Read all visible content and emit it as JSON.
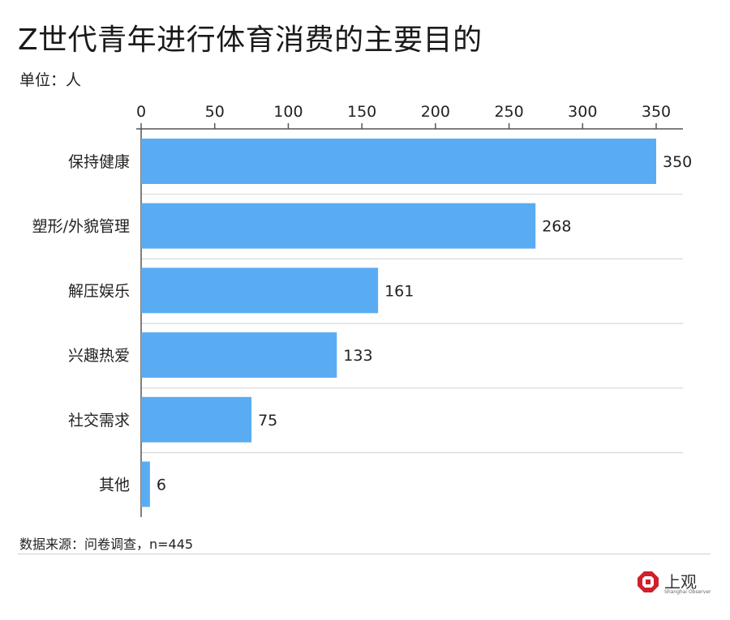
{
  "header": {
    "title": "Z世代青年进行体育消费的主要目的",
    "unit": "单位：人"
  },
  "footer": {
    "source": "数据来源：问卷调查，n=445"
  },
  "brand": {
    "name": "上观",
    "subtitle": "Shanghai Observer",
    "color": "#d0202a"
  },
  "chart_data": {
    "type": "bar",
    "orientation": "horizontal",
    "categories": [
      "保持健康",
      "塑形/外貌管理",
      "解压娱乐",
      "兴趣热爱",
      "社交需求",
      "其他"
    ],
    "values": [
      350,
      268,
      161,
      133,
      75,
      6
    ],
    "data_labels": [
      "350",
      "268",
      "161",
      "133",
      "75",
      "6"
    ],
    "xlim": [
      0,
      370
    ],
    "x_ticks": [
      0,
      50,
      100,
      150,
      200,
      250,
      300,
      350
    ],
    "x_axis_position": "top",
    "grid": "horizontal separators",
    "bar_color": "#5aacf2",
    "axis_color": "#555555",
    "grid_color": "#d9d9d9"
  }
}
